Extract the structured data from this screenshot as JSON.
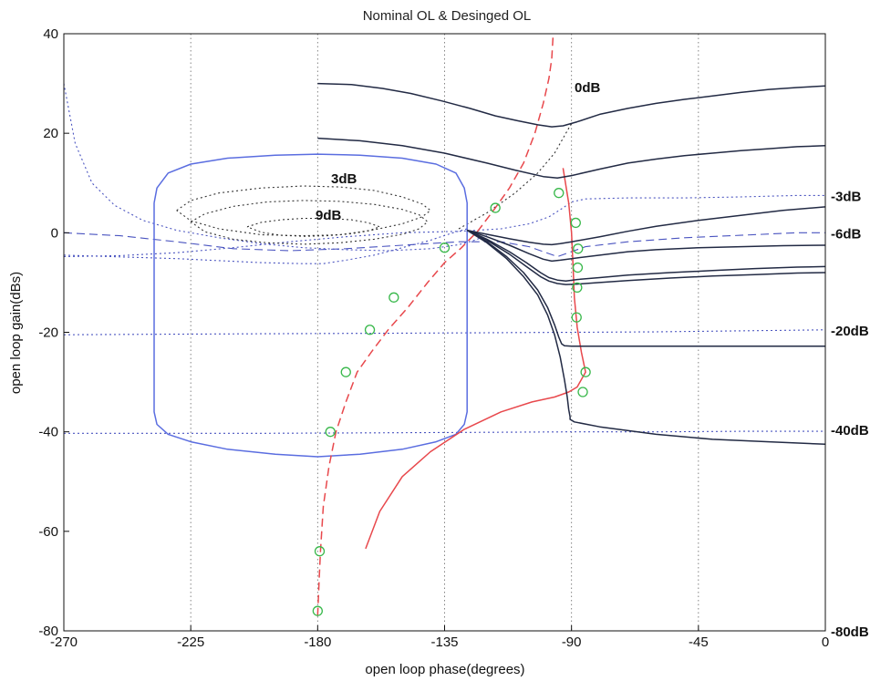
{
  "chart_data": {
    "type": "line",
    "title": "Nominal OL & Desinged OL",
    "xlabel": "open loop phase(degrees)",
    "ylabel": "open loop gain(dBs)",
    "xlim": [
      -270,
      0
    ],
    "ylim": [
      -80,
      40
    ],
    "xticks": [
      -270,
      -225,
      -180,
      -135,
      -90,
      -45,
      0
    ],
    "yticks": [
      -80,
      -60,
      -40,
      -20,
      0,
      20,
      40
    ],
    "grid": true,
    "nichols_labels": {
      "closed_loop_magnitude": [
        "0dB",
        "3dB",
        "9dB"
      ],
      "closed_loop_right_edge": [
        {
          "text": "-3dB",
          "y": 7.5
        },
        {
          "text": "-6dB",
          "y": 0
        },
        {
          "text": "-20dB",
          "y": -19.5
        },
        {
          "text": "-40dB",
          "y": -39.5
        },
        {
          "text": "-80dB",
          "y": -80
        }
      ]
    },
    "series": [
      {
        "color": "#5a6de0",
        "x": [
          -238,
          -237,
          -233,
          -225,
          -212,
          -195,
          -180,
          -165,
          -150,
          -138,
          -131,
          -128,
          -127,
          -127,
          -128,
          -131,
          -138,
          -150,
          -165,
          -180,
          -195,
          -212,
          -225,
          -233,
          -237,
          -238,
          -238
        ],
        "y": [
          6,
          9,
          12,
          13.8,
          15,
          15.6,
          15.8,
          15.6,
          15,
          13.8,
          12,
          9,
          6,
          -36,
          -38.5,
          -40.5,
          -42,
          -43.5,
          -44.5,
          -45,
          -44.5,
          -43.5,
          -42,
          -40.5,
          -38.5,
          -36,
          6
        ]
      },
      {
        "style": "dashed",
        "color": "#e8484c",
        "x": [
          -180,
          -179.5,
          -179,
          -178,
          -176,
          -173.5,
          -170,
          -166,
          -161,
          -155,
          -148,
          -141,
          -135,
          -129,
          -123,
          -117,
          -112,
          -107,
          -103,
          -100,
          -98,
          -97,
          -96.5
        ],
        "y": [
          -77,
          -70,
          -64,
          -55,
          -47,
          -40,
          -34,
          -28,
          -24,
          -19.5,
          -15,
          -10,
          -6,
          -3,
          0.5,
          5,
          9,
          14,
          20,
          26,
          31,
          35,
          40
        ]
      },
      {
        "color": "#e8484c",
        "x": [
          -163,
          -158,
          -150,
          -140,
          -128,
          -115,
          -104,
          -96,
          -91,
          -88,
          -86,
          -85,
          -86.5,
          -88,
          -89,
          -89.5,
          -90,
          -91,
          -93
        ],
        "y": [
          -63.5,
          -56,
          -49,
          -44,
          -39.5,
          -36,
          -34,
          -33,
          -32,
          -31,
          -29,
          -28,
          -24,
          -19,
          -13,
          -6,
          0,
          6,
          13
        ]
      },
      {
        "color": "#222a44",
        "x": [
          -180,
          -168,
          -157,
          -147,
          -136,
          -126,
          -117,
          -109,
          -102,
          -97,
          -93,
          -88,
          -80,
          -70,
          -60,
          -50,
          -40,
          -30,
          -20,
          -10,
          0
        ],
        "y": [
          30,
          29.8,
          29,
          28,
          26.5,
          25,
          23.5,
          22.5,
          21.7,
          21.3,
          21.5,
          22.3,
          23.8,
          25,
          26,
          26.8,
          27.5,
          28.2,
          28.8,
          29.2,
          29.5
        ]
      },
      {
        "color": "#222a44",
        "x": [
          -180,
          -165,
          -150,
          -135,
          -120,
          -110,
          -100,
          -95,
          -90,
          -80,
          -70,
          -60,
          -50,
          -40,
          -30,
          -20,
          -10,
          0
        ],
        "y": [
          19,
          18.5,
          17.5,
          16,
          14,
          12.6,
          11.3,
          11,
          11.5,
          12.8,
          14,
          14.8,
          15.5,
          16,
          16.5,
          16.9,
          17.3,
          17.5
        ]
      },
      {
        "color": "#222a44",
        "x": [
          -127,
          -120,
          -112,
          -105,
          -100,
          -97,
          -94,
          -90,
          -80,
          -70,
          -60,
          -45,
          -30,
          -15,
          0
        ],
        "y": [
          0.5,
          -0.3,
          -1.2,
          -1.9,
          -2.3,
          -2.4,
          -2.2,
          -1.8,
          -0.8,
          0.3,
          1.3,
          2.5,
          3.5,
          4.5,
          5.2
        ]
      },
      {
        "color": "#222a44",
        "x": [
          -127,
          -120,
          -112,
          -105,
          -100,
          -97,
          -94,
          -90,
          -80,
          -70,
          -60,
          -45,
          -30,
          -15,
          0
        ],
        "y": [
          0.5,
          -0.8,
          -2.5,
          -4.2,
          -5.3,
          -5.7,
          -5.5,
          -5.2,
          -4.5,
          -3.8,
          -3.4,
          -3,
          -2.8,
          -2.6,
          -2.5
        ]
      },
      {
        "color": "#222a44",
        "x": [
          -127,
          -120,
          -112,
          -106,
          -101,
          -98,
          -95,
          -92,
          -88,
          -80,
          -70,
          -55,
          -40,
          -25,
          -10,
          0
        ],
        "y": [
          0.5,
          -1.3,
          -3.8,
          -6,
          -8,
          -9,
          -9.5,
          -9.7,
          -9.4,
          -9,
          -8.5,
          -8,
          -7.6,
          -7.2,
          -6.9,
          -6.8
        ]
      },
      {
        "color": "#222a44",
        "x": [
          -127,
          -120,
          -112,
          -106,
          -101,
          -98,
          -95,
          -92,
          -88,
          -80,
          -70,
          -55,
          -40,
          -25,
          -10,
          0
        ],
        "y": [
          0.5,
          -1.5,
          -4.3,
          -6.8,
          -8.8,
          -9.7,
          -10.2,
          -10.4,
          -10.3,
          -10,
          -9.6,
          -9.1,
          -8.7,
          -8.4,
          -8.1,
          -8
        ]
      },
      {
        "color": "#222a44",
        "x": [
          -127,
          -120,
          -113,
          -107,
          -102,
          -98.5,
          -96,
          -94.5,
          -93.5,
          -92.5,
          -90,
          -80,
          -60,
          -40,
          -20,
          0
        ],
        "y": [
          0.5,
          -1.8,
          -4.8,
          -8,
          -11.5,
          -15,
          -18.5,
          -21,
          -22.3,
          -22.7,
          -22.8,
          -22.8,
          -22.8,
          -22.8,
          -22.8,
          -22.8
        ]
      },
      {
        "color": "#222a44",
        "x": [
          -127,
          -120,
          -113,
          -107,
          -102,
          -98.5,
          -96,
          -94,
          -92.5,
          -91.5,
          -91,
          -90.5,
          -90.5,
          -89,
          -80,
          -60,
          -40,
          -20,
          0
        ],
        "y": [
          0.5,
          -2,
          -5.2,
          -8.8,
          -12.5,
          -16.5,
          -20.5,
          -25,
          -29.5,
          -33,
          -35.5,
          -37,
          -37.5,
          -38,
          -39,
          -40.5,
          -41.5,
          -42,
          -42.5
        ]
      }
    ],
    "markers": {
      "shape": "circle",
      "color": "#38b84a",
      "points": [
        [
          -180,
          -76
        ],
        [
          -179.3,
          -64
        ],
        [
          -175.5,
          -40
        ],
        [
          -170,
          -28
        ],
        [
          -161.5,
          -19.5
        ],
        [
          -153,
          -13
        ],
        [
          -135,
          -3
        ],
        [
          -117,
          5
        ],
        [
          -94.5,
          8
        ],
        [
          -88.5,
          2
        ],
        [
          -87.7,
          -3.2
        ],
        [
          -87.8,
          -7
        ],
        [
          -88,
          -11
        ],
        [
          -88.2,
          -17
        ],
        [
          -85,
          -28
        ],
        [
          -86,
          -32
        ]
      ]
    },
    "grid_contours": [
      {
        "style": "dotted",
        "color": "#4a54c0",
        "x": [
          -270,
          -250,
          -230,
          -210,
          -190,
          -170,
          -150,
          -130,
          -115,
          -105,
          -98,
          -93,
          -90,
          -85,
          -70,
          -50,
          -30,
          -10,
          0
        ],
        "y": [
          -4.8,
          -4.6,
          -4,
          -3,
          -1.8,
          -0.8,
          0,
          0.3,
          0.8,
          1.8,
          3.2,
          5,
          6.2,
          6.8,
          7,
          7,
          7.2,
          7.5,
          7.5
        ]
      },
      {
        "style": "dashed",
        "color": "#4a54c0",
        "x": [
          -270,
          -250,
          -230,
          -210,
          -190,
          -170,
          -150,
          -130,
          -115,
          -105,
          -95,
          -85,
          -70,
          -50,
          -30,
          -10,
          0
        ],
        "y": [
          0,
          -0.6,
          -1.8,
          -3.2,
          -3.6,
          -3.2,
          -2.5,
          -1.8,
          -1.8,
          -2.8,
          -4.8,
          -2.8,
          -1.8,
          -1,
          -0.5,
          0,
          0
        ]
      },
      {
        "style": "dotted",
        "color": "#4a54c0",
        "x": [
          -270,
          -230,
          -200,
          -185,
          -178,
          -170,
          -160,
          -150,
          -140,
          -132,
          -127
        ],
        "y": [
          -4.5,
          -5.2,
          -6,
          -6.2,
          -6.2,
          -5.5,
          -4.5,
          -3,
          -1.5,
          0,
          0.8
        ]
      },
      {
        "style": "dotted",
        "color": "#4a54c0",
        "x": [
          -270,
          -240,
          -200,
          -160,
          -120,
          -90,
          -60,
          -30,
          0
        ],
        "y": [
          -20.5,
          -20.4,
          -20.3,
          -20.2,
          -20.1,
          -20,
          -19.9,
          -19.7,
          -19.5
        ]
      },
      {
        "style": "dotted",
        "color": "#4a54c0",
        "x": [
          -270,
          -240,
          -200,
          -160,
          -120,
          -90,
          -60,
          -30,
          0
        ],
        "y": [
          -40.3,
          -40.3,
          -40.3,
          -40.2,
          -40.1,
          -40,
          -40,
          -39.9,
          -39.9
        ]
      },
      {
        "style": "dotted",
        "color": "#4a54c0",
        "x": [
          -270,
          -266,
          -260,
          -252,
          -242,
          -230,
          -215,
          -200,
          -185,
          -170,
          -155,
          -140,
          -130,
          -125,
          -120
        ],
        "y": [
          30,
          18,
          10,
          5.5,
          2.5,
          0.5,
          -1,
          -2.2,
          -3,
          -3.4,
          -3.6,
          -3.2,
          -2.4,
          -1.6,
          -0.6
        ]
      },
      {
        "style": "dotted",
        "color": "#333",
        "x": [
          -230,
          -225,
          -215,
          -200,
          -185,
          -172,
          -160,
          -150,
          -143,
          -140,
          -143,
          -150,
          -160,
          -172,
          -185,
          -200,
          -215,
          -225,
          -230
        ],
        "y": [
          4.5,
          6.5,
          8,
          9,
          9.4,
          9.2,
          8.5,
          7.2,
          5.8,
          4.5,
          3.2,
          1.8,
          0.6,
          -0.4,
          -0.6,
          -0.4,
          0.8,
          2.4,
          4.5
        ]
      },
      {
        "style": "dotted",
        "color": "#333",
        "x": [
          -225,
          -220,
          -210,
          -198,
          -185,
          -172,
          -160,
          -150,
          -144,
          -141,
          -144,
          -150,
          -160,
          -172,
          -185,
          -198,
          -210,
          -220,
          -225
        ],
        "y": [
          2.2,
          3.8,
          5.3,
          6.2,
          6.5,
          6.3,
          5.7,
          4.7,
          3.6,
          2.2,
          0.8,
          -0.3,
          -1.3,
          -2,
          -2.3,
          -2,
          -1.3,
          0.2,
          2.2
        ]
      },
      {
        "style": "dotted",
        "color": "#333",
        "x": [
          -205,
          -200,
          -193,
          -185,
          -177,
          -168,
          -162,
          -158,
          -162,
          -168,
          -177,
          -185,
          -193,
          -200,
          -205
        ],
        "y": [
          1.2,
          2.1,
          2.6,
          2.9,
          2.9,
          2.6,
          2,
          1.2,
          0.4,
          -0.2,
          -0.6,
          -0.7,
          -0.5,
          0.1,
          1.2
        ]
      },
      {
        "style": "dotted",
        "color": "#333",
        "x": [
          -130,
          -120,
          -110,
          -102,
          -96,
          -92,
          -90
        ],
        "y": [
          0.8,
          4,
          8,
          12,
          16,
          20,
          22
        ]
      }
    ]
  }
}
